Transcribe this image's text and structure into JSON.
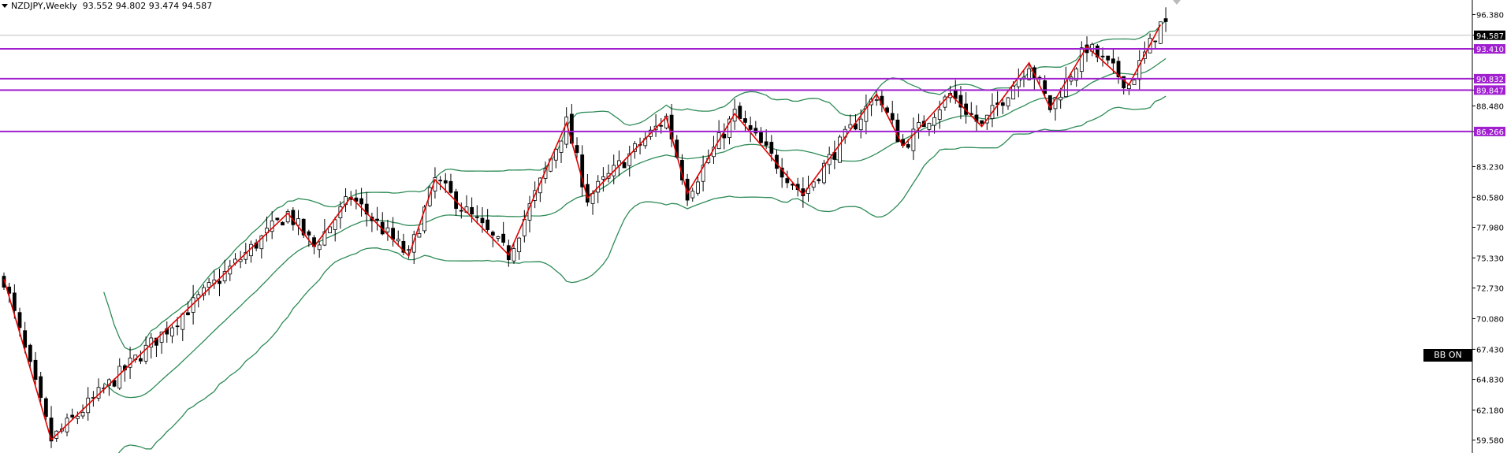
{
  "header": {
    "symbol": "NZDJPY,Weekly",
    "ohlc": "93.552 94.802 93.474 94.587"
  },
  "overlay_button": {
    "label": "BB ON"
  },
  "chart_data": {
    "type": "candlestick",
    "symbol": "NZDJPY",
    "timeframe": "Weekly",
    "last_price": 94.587,
    "ylim": [
      58.6,
      97.5
    ],
    "y_ticks": [
      "96.380",
      "94.587",
      "93.410",
      "90.832",
      "89.847",
      "88.480",
      "86.266",
      "83.230",
      "80.580",
      "77.980",
      "75.330",
      "72.730",
      "70.080",
      "67.430",
      "64.830",
      "62.180",
      "59.580"
    ],
    "horizontal_levels": [
      {
        "value": 93.41,
        "label": "93.410",
        "color": "#a020d0"
      },
      {
        "value": 90.832,
        "label": "90.832",
        "color": "#a020d0"
      },
      {
        "value": 89.847,
        "label": "89.847",
        "color": "#a020d0"
      },
      {
        "value": 86.266,
        "label": "86.266",
        "color": "#a020d0"
      }
    ],
    "zigzag_color": "#e00000",
    "bollinger_color": "#2e8b57",
    "zigzag": [
      [
        0,
        73.5
      ],
      [
        9,
        59.6
      ],
      [
        54,
        79.2
      ],
      [
        59,
        76.3
      ],
      [
        66,
        80.6
      ],
      [
        77,
        75.5
      ],
      [
        82,
        82.1
      ],
      [
        96,
        75.6
      ],
      [
        107,
        87.0
      ],
      [
        111,
        80.5
      ],
      [
        126,
        87.5
      ],
      [
        130,
        80.9
      ],
      [
        139,
        87.8
      ],
      [
        152,
        80.8
      ],
      [
        166,
        89.5
      ],
      [
        171,
        85.0
      ],
      [
        180,
        89.5
      ],
      [
        186,
        86.7
      ],
      [
        195,
        92.2
      ],
      [
        199,
        88.3
      ],
      [
        206,
        93.6
      ],
      [
        214,
        90.3
      ],
      [
        220,
        95.5
      ]
    ],
    "candle_count": 222
  }
}
